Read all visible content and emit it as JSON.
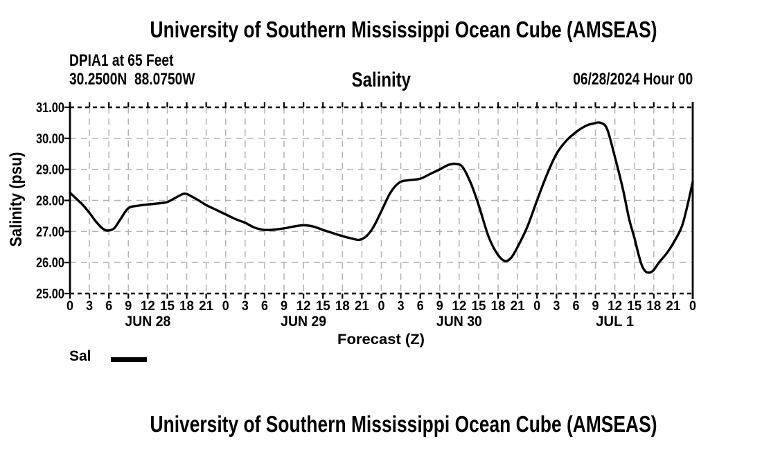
{
  "page": {
    "top_title": "University of Southern Mississippi Ocean Cube (AMSEAS)",
    "bottom_title": "University of Southern Mississippi Ocean Cube (AMSEAS)"
  },
  "header": {
    "station": "DPIA1 at 65 Feet",
    "coordinates": "30.2500N  88.0750W",
    "variable": "Salinity",
    "run_time": "06/28/2024 Hour 00"
  },
  "chart_data": {
    "type": "line",
    "title": "Salinity",
    "station": "DPIA1 at 65 Feet",
    "location": "30.2500N 88.0750W",
    "init_time": "06/28/2024 Hour 00",
    "xlabel": "Forecast (Z)",
    "ylabel": "Salinity (psu)",
    "ylim": [
      25.0,
      31.0
    ],
    "xlim_hours": [
      0,
      96
    ],
    "grid": true,
    "y_ticks": [
      {
        "value": 31,
        "label": "31.00"
      },
      {
        "value": 30,
        "label": "30.00"
      },
      {
        "value": 29,
        "label": "29.00"
      },
      {
        "value": 28,
        "label": "28.00"
      },
      {
        "value": 27,
        "label": "27.00"
      },
      {
        "value": 26,
        "label": "26.00"
      },
      {
        "value": 25,
        "label": "25.00"
      }
    ],
    "x_tick_step_hours": 3,
    "x_tick_labels": [
      "0",
      "3",
      "6",
      "9",
      "12",
      "15",
      "18",
      "21",
      "0",
      "3",
      "6",
      "9",
      "12",
      "15",
      "18",
      "21",
      "0",
      "3",
      "6",
      "9",
      "12",
      "15",
      "18",
      "21",
      "0",
      "3",
      "6",
      "9",
      "12",
      "15",
      "18",
      "21",
      "0"
    ],
    "day_labels": [
      {
        "label": "JUN 28",
        "hour": 12
      },
      {
        "label": "JUN 29",
        "hour": 36
      },
      {
        "label": "JUN 30",
        "hour": 60
      },
      {
        "label": "JUL 1",
        "hour": 84
      }
    ],
    "legend": [
      {
        "label": "Sal",
        "color": "#000000"
      }
    ],
    "series": [
      {
        "name": "Sal",
        "units": "psu",
        "color": "#000000",
        "points_hour_psu": [
          [
            0,
            28.25
          ],
          [
            1,
            28.05
          ],
          [
            2,
            27.85
          ],
          [
            3,
            27.6
          ],
          [
            4,
            27.32
          ],
          [
            5,
            27.1
          ],
          [
            5.8,
            27.03
          ],
          [
            6.8,
            27.1
          ],
          [
            7.8,
            27.4
          ],
          [
            9,
            27.75
          ],
          [
            10.5,
            27.83
          ],
          [
            12,
            27.87
          ],
          [
            13.5,
            27.9
          ],
          [
            15,
            27.95
          ],
          [
            16.4,
            28.1
          ],
          [
            17.7,
            28.22
          ],
          [
            19,
            28.1
          ],
          [
            20,
            27.98
          ],
          [
            21,
            27.85
          ],
          [
            22.5,
            27.7
          ],
          [
            24,
            27.55
          ],
          [
            25.5,
            27.4
          ],
          [
            27,
            27.28
          ],
          [
            28.5,
            27.12
          ],
          [
            30,
            27.05
          ],
          [
            31.5,
            27.06
          ],
          [
            33,
            27.1
          ],
          [
            34.5,
            27.16
          ],
          [
            36,
            27.2
          ],
          [
            37.5,
            27.16
          ],
          [
            39,
            27.05
          ],
          [
            40.5,
            26.95
          ],
          [
            42,
            26.85
          ],
          [
            43.5,
            26.77
          ],
          [
            44.6,
            26.73
          ],
          [
            45.7,
            26.85
          ],
          [
            46.8,
            27.15
          ],
          [
            48,
            27.65
          ],
          [
            49.4,
            28.25
          ],
          [
            50.8,
            28.58
          ],
          [
            52.2,
            28.65
          ],
          [
            54,
            28.7
          ],
          [
            55.5,
            28.85
          ],
          [
            57,
            29.0
          ],
          [
            58.3,
            29.14
          ],
          [
            59.4,
            29.18
          ],
          [
            60.5,
            29.08
          ],
          [
            61.8,
            28.55
          ],
          [
            63,
            27.85
          ],
          [
            64.5,
            26.85
          ],
          [
            65.8,
            26.3
          ],
          [
            67,
            26.05
          ],
          [
            68,
            26.15
          ],
          [
            69,
            26.5
          ],
          [
            70.5,
            27.15
          ],
          [
            72,
            28.0
          ],
          [
            73.5,
            28.82
          ],
          [
            75,
            29.5
          ],
          [
            76.5,
            29.92
          ],
          [
            78,
            30.2
          ],
          [
            79.5,
            30.4
          ],
          [
            80.7,
            30.48
          ],
          [
            81.8,
            30.5
          ],
          [
            82.8,
            30.3
          ],
          [
            84,
            29.4
          ],
          [
            85.2,
            28.4
          ],
          [
            86.2,
            27.4
          ],
          [
            87,
            26.8
          ],
          [
            88,
            26.0
          ],
          [
            88.8,
            25.7
          ],
          [
            89.8,
            25.72
          ],
          [
            90.8,
            26.0
          ],
          [
            92,
            26.3
          ],
          [
            93,
            26.62
          ],
          [
            94.3,
            27.15
          ],
          [
            95.2,
            27.85
          ],
          [
            96,
            28.6
          ]
        ]
      }
    ]
  },
  "colors": {
    "background": "#ffffff",
    "text": "#000000",
    "grid": "#b3b3b3",
    "axis": "#000000",
    "line": "#000000"
  }
}
